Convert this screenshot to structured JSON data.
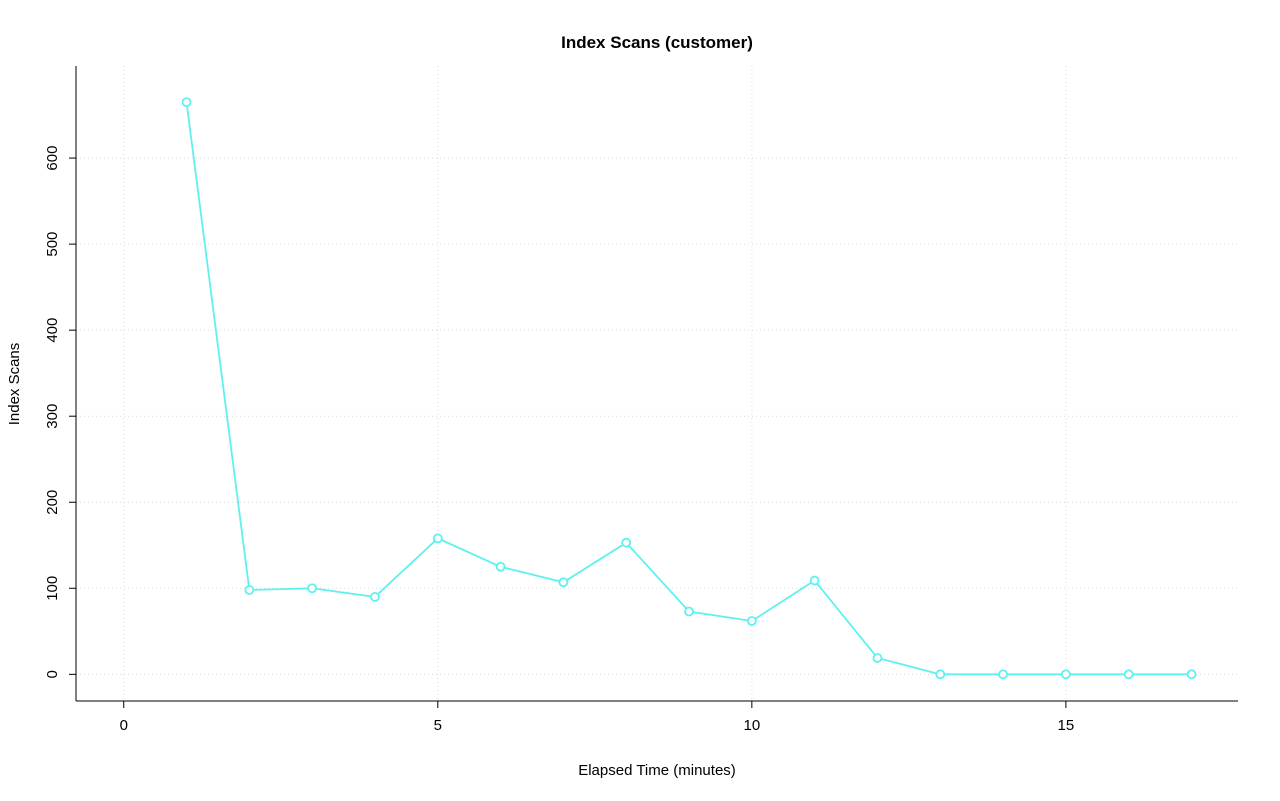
{
  "chart_data": {
    "type": "line",
    "title": "Index Scans (customer)",
    "xlabel": "Elapsed Time (minutes)",
    "ylabel": "Index Scans",
    "x": [
      1,
      2,
      3,
      4,
      5,
      6,
      7,
      8,
      9,
      10,
      11,
      12,
      13,
      14,
      15,
      16,
      17
    ],
    "y": [
      665,
      98,
      100,
      90,
      158,
      125,
      107,
      153,
      73,
      62,
      109,
      19,
      0,
      0,
      0,
      0,
      0
    ],
    "xticks": [
      0,
      5,
      10,
      15
    ],
    "yticks": [
      0,
      100,
      200,
      300,
      400,
      500,
      600
    ],
    "xlim": [
      -0.76,
      17.74
    ],
    "ylim": [
      -31,
      707
    ],
    "grid": true,
    "grid_color": "#d9d9d9",
    "line_color": "#5FF0F0",
    "point_style": "open-circle",
    "legend": "none"
  }
}
